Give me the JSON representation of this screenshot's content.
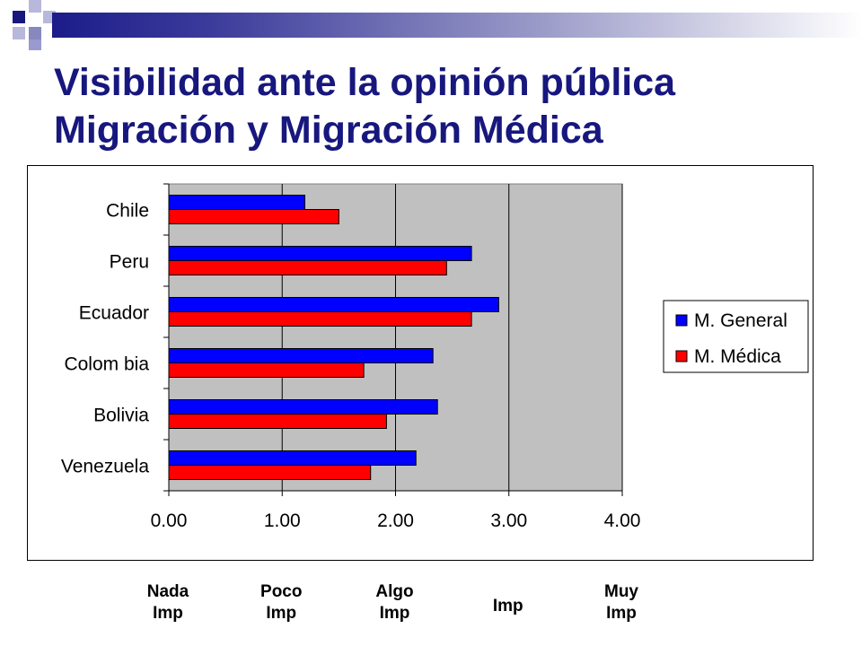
{
  "slide": {
    "title_line1": "Visibilidad ante la opinión pública",
    "title_line2": "Migración y Migración Médica",
    "accent_color": "#17177e"
  },
  "chart_data": {
    "type": "bar",
    "orientation": "horizontal",
    "categories": [
      "Chile",
      "Peru",
      "Ecuador",
      "Colom bia",
      "Bolivia",
      "Venezuela"
    ],
    "series": [
      {
        "name": "M. General",
        "color": "#0000ff",
        "values": [
          1.2,
          2.67,
          2.91,
          2.33,
          2.37,
          2.18
        ]
      },
      {
        "name": "M. Médica",
        "color": "#ff0000",
        "values": [
          1.5,
          2.45,
          2.67,
          1.72,
          1.92,
          1.78
        ]
      }
    ],
    "x_ticks": [
      "0.00",
      "1.00",
      "2.00",
      "3.00",
      "4.00"
    ],
    "xlim": [
      0,
      4
    ],
    "grid": "vertical",
    "legend_position": "right",
    "plot_background": "#c0c0c0",
    "scale_labels": [
      {
        "line1": "Nada",
        "line2": "Imp",
        "value": 0
      },
      {
        "line1": "Poco",
        "line2": "Imp",
        "value": 1
      },
      {
        "line1": "Algo",
        "line2": "Imp",
        "value": 2
      },
      {
        "line1": "Imp",
        "line2": "",
        "value": 3
      },
      {
        "line1": "Muy",
        "line2": "Imp",
        "value": 4
      }
    ]
  }
}
